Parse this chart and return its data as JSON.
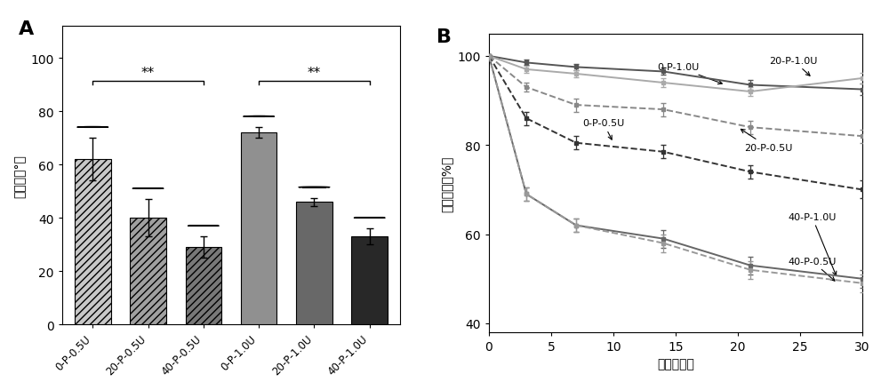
{
  "panel_A": {
    "categories": [
      "0-P-0.5U",
      "20-P-0.5U",
      "40-P-0.5U",
      "0-P-1.0U",
      "20-P-1.0U",
      "40-P-1.0U"
    ],
    "values": [
      62,
      40,
      29,
      72,
      46,
      33
    ],
    "errors": [
      8,
      7,
      4,
      2,
      1.5,
      3
    ],
    "colors": [
      "#c8c8c8",
      "#a0a0a0",
      "#787878",
      "#909090",
      "#686868",
      "#282828"
    ],
    "hatches": [
      "////",
      "////",
      "////",
      "",
      "",
      ""
    ],
    "ylabel": "接触角（°）",
    "ylim": [
      0,
      112
    ],
    "yticks": [
      0,
      20,
      40,
      60,
      80,
      100
    ],
    "bracket_y": 88,
    "bracket_text": "**"
  },
  "panel_B": {
    "title": "B",
    "xlabel": "时间（天）",
    "ylabel": "保留质量（%）",
    "xlim": [
      0,
      30
    ],
    "ylim": [
      38,
      105
    ],
    "yticks": [
      40,
      60,
      80,
      100
    ],
    "xticks": [
      0,
      5,
      10,
      15,
      20,
      25,
      30
    ],
    "series": [
      {
        "label": "0-P-1.0U",
        "x": [
          0,
          3,
          7,
          14,
          21,
          30
        ],
        "y": [
          100,
          98.5,
          97.5,
          96.5,
          93.5,
          92.5
        ],
        "yerr": [
          0,
          0.6,
          0.7,
          0.8,
          1.0,
          1.2
        ],
        "color": "#555555",
        "linestyle": "-"
      },
      {
        "label": "20-P-1.0U",
        "x": [
          0,
          3,
          7,
          14,
          21,
          30
        ],
        "y": [
          100,
          97,
          96,
          94,
          92,
          95
        ],
        "yerr": [
          0,
          0.8,
          0.8,
          1.0,
          1.0,
          1.2
        ],
        "color": "#aaaaaa",
        "linestyle": "-"
      },
      {
        "label": "0-P-0.5U",
        "x": [
          0,
          3,
          7,
          14,
          21,
          30
        ],
        "y": [
          100,
          86,
          80.5,
          78.5,
          74,
          70
        ],
        "yerr": [
          0,
          1.5,
          1.5,
          1.5,
          1.5,
          2.0
        ],
        "color": "#333333",
        "linestyle": "--"
      },
      {
        "label": "20-P-0.5U",
        "x": [
          0,
          3,
          7,
          14,
          21,
          30
        ],
        "y": [
          100,
          93,
          89,
          88,
          84,
          82
        ],
        "yerr": [
          0,
          1.0,
          1.5,
          1.5,
          1.5,
          1.5
        ],
        "color": "#888888",
        "linestyle": "--"
      },
      {
        "label": "40-P-1.0U",
        "x": [
          0,
          3,
          7,
          14,
          21,
          30
        ],
        "y": [
          100,
          69,
          62,
          59,
          53,
          50
        ],
        "yerr": [
          0,
          1.5,
          1.5,
          2.0,
          2.0,
          2.0
        ],
        "color": "#666666",
        "linestyle": "-"
      },
      {
        "label": "40-P-0.5U",
        "x": [
          0,
          3,
          7,
          14,
          21,
          30
        ],
        "y": [
          100,
          69,
          62,
          58,
          52,
          49
        ],
        "yerr": [
          0,
          1.5,
          1.5,
          2.0,
          2.0,
          2.0
        ],
        "color": "#999999",
        "linestyle": "--"
      }
    ]
  }
}
